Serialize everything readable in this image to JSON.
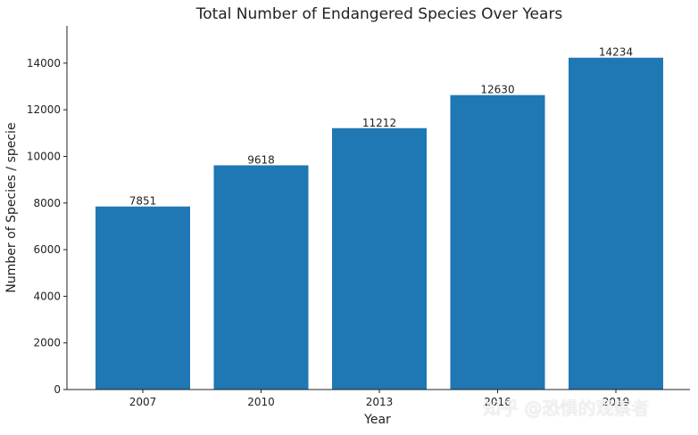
{
  "chart_data": {
    "type": "bar",
    "title": "Total Number of Endangered Species Over Years",
    "xlabel": "Year",
    "ylabel": "Number of Species / specie",
    "categories": [
      "2007",
      "2010",
      "2013",
      "2016",
      "2019"
    ],
    "values": [
      7851,
      9618,
      11212,
      12630,
      14234
    ],
    "ylim": [
      0,
      15600
    ],
    "yticks": [
      0,
      2000,
      4000,
      6000,
      8000,
      10000,
      12000,
      14000
    ],
    "bar_color": "#1f77b4",
    "grid": false,
    "data_labels": true
  },
  "watermark": "知乎 @恐惧的观察者"
}
